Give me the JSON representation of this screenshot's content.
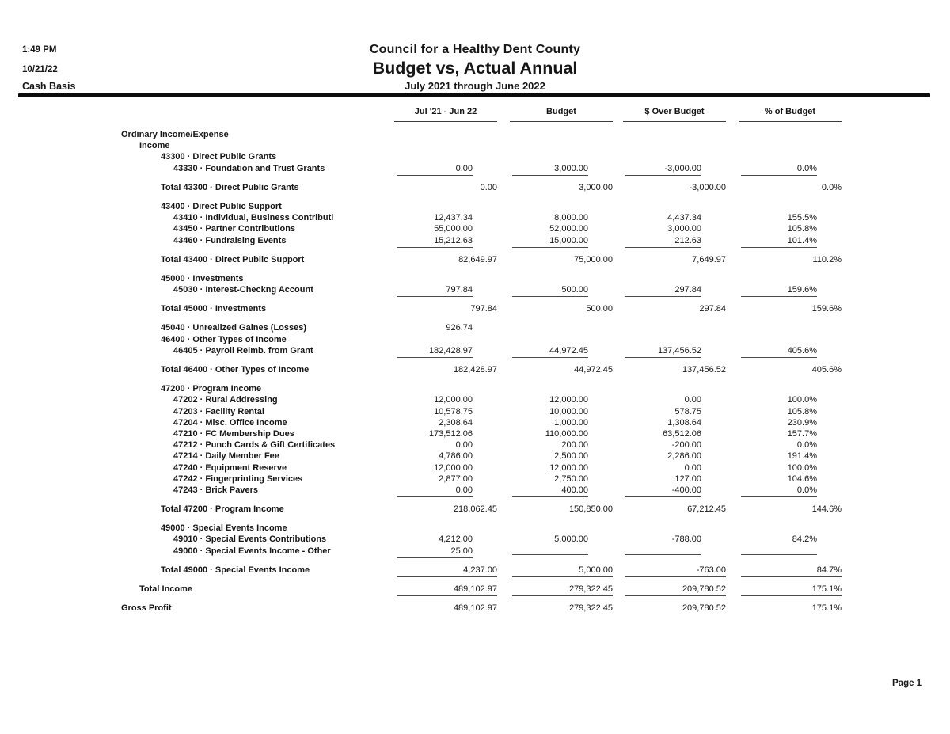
{
  "header": {
    "time": "1:49 PM",
    "date": "10/21/22",
    "basis": "Cash Basis",
    "company": "Council for a Healthy Dent County",
    "report_title": "Budget vs, Actual Annual",
    "period": "July 2021 through June 2022"
  },
  "footer": {
    "page_label": "Page 1"
  },
  "colors": {
    "text": "#161616",
    "thick_rule": "#0b0b0b",
    "thin_line": "#4a4a4a",
    "background": "#ffffff"
  },
  "table": {
    "columns": [
      "Jul '21 - Jun 22",
      "Budget",
      "$ Over Budget",
      "% of Budget"
    ],
    "column_keys": [
      "jul21-jun22",
      "budget",
      "dollar-over-budget",
      "pct-of-budget"
    ],
    "rows": [
      {
        "label": "Ordinary Income/Expense",
        "indent": 0,
        "values": null
      },
      {
        "label": "Income",
        "indent": 1,
        "values": null
      },
      {
        "label": "43300 · Direct Public Grants",
        "indent": 2,
        "values": null
      },
      {
        "label": "43330 · Foundation and Trust Grants",
        "indent": 3,
        "values": [
          "0.00",
          "3,000.00",
          "-3,000.00",
          "0.0%"
        ],
        "underline": true
      },
      {
        "label": "Total 43300 · Direct Public Grants",
        "indent": 2,
        "values": [
          "0.00",
          "3,000.00",
          "-3,000.00",
          "0.0%"
        ],
        "total": true,
        "gap": true
      },
      {
        "label": "43400 · Direct Public Support",
        "indent": 2,
        "values": null,
        "gap": true
      },
      {
        "label": "43410 · Individual, Business Contributi",
        "indent": 3,
        "values": [
          "12,437.34",
          "8,000.00",
          "4,437.34",
          "155.5%"
        ]
      },
      {
        "label": "43450 · Partner Contributions",
        "indent": 3,
        "values": [
          "55,000.00",
          "52,000.00",
          "3,000.00",
          "105.8%"
        ]
      },
      {
        "label": "43460 · Fundraising Events",
        "indent": 3,
        "values": [
          "15,212.63",
          "15,000.00",
          "212.63",
          "101.4%"
        ],
        "underline": true
      },
      {
        "label": "Total 43400 · Direct Public Support",
        "indent": 2,
        "values": [
          "82,649.97",
          "75,000.00",
          "7,649.97",
          "110.2%"
        ],
        "total": true,
        "gap": true
      },
      {
        "label": "45000 · Investments",
        "indent": 2,
        "values": null,
        "gap": true
      },
      {
        "label": "45030 · Interest-Checkng Account",
        "indent": 3,
        "values": [
          "797.84",
          "500.00",
          "297.84",
          "159.6%"
        ],
        "underline": true
      },
      {
        "label": "Total 45000 · Investments",
        "indent": 2,
        "values": [
          "797.84",
          "500.00",
          "297.84",
          "159.6%"
        ],
        "total": true,
        "gap": true
      },
      {
        "label": "45040 · Unrealized Gaines (Losses)",
        "indent": 2,
        "values": [
          "926.74",
          "",
          "",
          ""
        ],
        "gap": true
      },
      {
        "label": "46400 · Other Types of Income",
        "indent": 2,
        "values": null
      },
      {
        "label": "46405 · Payroll Reimb. from Grant",
        "indent": 3,
        "values": [
          "182,428.97",
          "44,972.45",
          "137,456.52",
          "405.6%"
        ],
        "underline": true
      },
      {
        "label": "Total 46400 · Other Types of Income",
        "indent": 2,
        "values": [
          "182,428.97",
          "44,972.45",
          "137,456.52",
          "405.6%"
        ],
        "total": true,
        "gap": true
      },
      {
        "label": "47200 · Program Income",
        "indent": 2,
        "values": null,
        "gap": true
      },
      {
        "label": "47202 · Rural Addressing",
        "indent": 3,
        "values": [
          "12,000.00",
          "12,000.00",
          "0.00",
          "100.0%"
        ]
      },
      {
        "label": "47203 · Facility Rental",
        "indent": 3,
        "values": [
          "10,578.75",
          "10,000.00",
          "578.75",
          "105.8%"
        ]
      },
      {
        "label": "47204 · Misc. Office Income",
        "indent": 3,
        "values": [
          "2,308.64",
          "1,000.00",
          "1,308.64",
          "230.9%"
        ]
      },
      {
        "label": "47210 · FC Membership Dues",
        "indent": 3,
        "values": [
          "173,512.06",
          "110,000.00",
          "63,512.06",
          "157.7%"
        ]
      },
      {
        "label": "47212 · Punch Cards & Gift Certificates",
        "indent": 3,
        "values": [
          "0.00",
          "200.00",
          "-200.00",
          "0.0%"
        ]
      },
      {
        "label": "47214 · Daily Member Fee",
        "indent": 3,
        "values": [
          "4,786.00",
          "2,500.00",
          "2,286.00",
          "191.4%"
        ]
      },
      {
        "label": "47240 · Equipment Reserve",
        "indent": 3,
        "values": [
          "12,000.00",
          "12,000.00",
          "0.00",
          "100.0%"
        ]
      },
      {
        "label": "47242 · Fingerprinting Services",
        "indent": 3,
        "values": [
          "2,877.00",
          "2,750.00",
          "127.00",
          "104.6%"
        ]
      },
      {
        "label": "47243 · Brick Pavers",
        "indent": 3,
        "values": [
          "0.00",
          "400.00",
          "-400.00",
          "0.0%"
        ],
        "underline": true
      },
      {
        "label": "Total 47200 · Program Income",
        "indent": 2,
        "values": [
          "218,062.45",
          "150,850.00",
          "67,212.45",
          "144.6%"
        ],
        "total": true,
        "gap": true
      },
      {
        "label": "49000 · Special Events Income",
        "indent": 2,
        "values": null,
        "gap": true
      },
      {
        "label": "49010 · Special Events Contributions",
        "indent": 3,
        "values": [
          "4,212.00",
          "5,000.00",
          "-788.00",
          "84.2%"
        ]
      },
      {
        "label": "49000 · Special Events Income - Other",
        "indent": 3,
        "values": [
          "25.00",
          "",
          "",
          ""
        ],
        "underline": true
      },
      {
        "label": "Total 49000 · Special Events Income",
        "indent": 2,
        "values": [
          "4,237.00",
          "5,000.00",
          "-763.00",
          "84.7%"
        ],
        "total": true,
        "underline": true,
        "gap": true
      },
      {
        "label": "Total Income",
        "indent": 1,
        "values": [
          "489,102.97",
          "279,322.45",
          "209,780.52",
          "175.1%"
        ],
        "total": true,
        "underline": true,
        "gap": true
      },
      {
        "label": "Gross Profit",
        "indent": 0,
        "values": [
          "489,102.97",
          "279,322.45",
          "209,780.52",
          "175.1%"
        ],
        "total": true,
        "gap": true
      }
    ]
  }
}
